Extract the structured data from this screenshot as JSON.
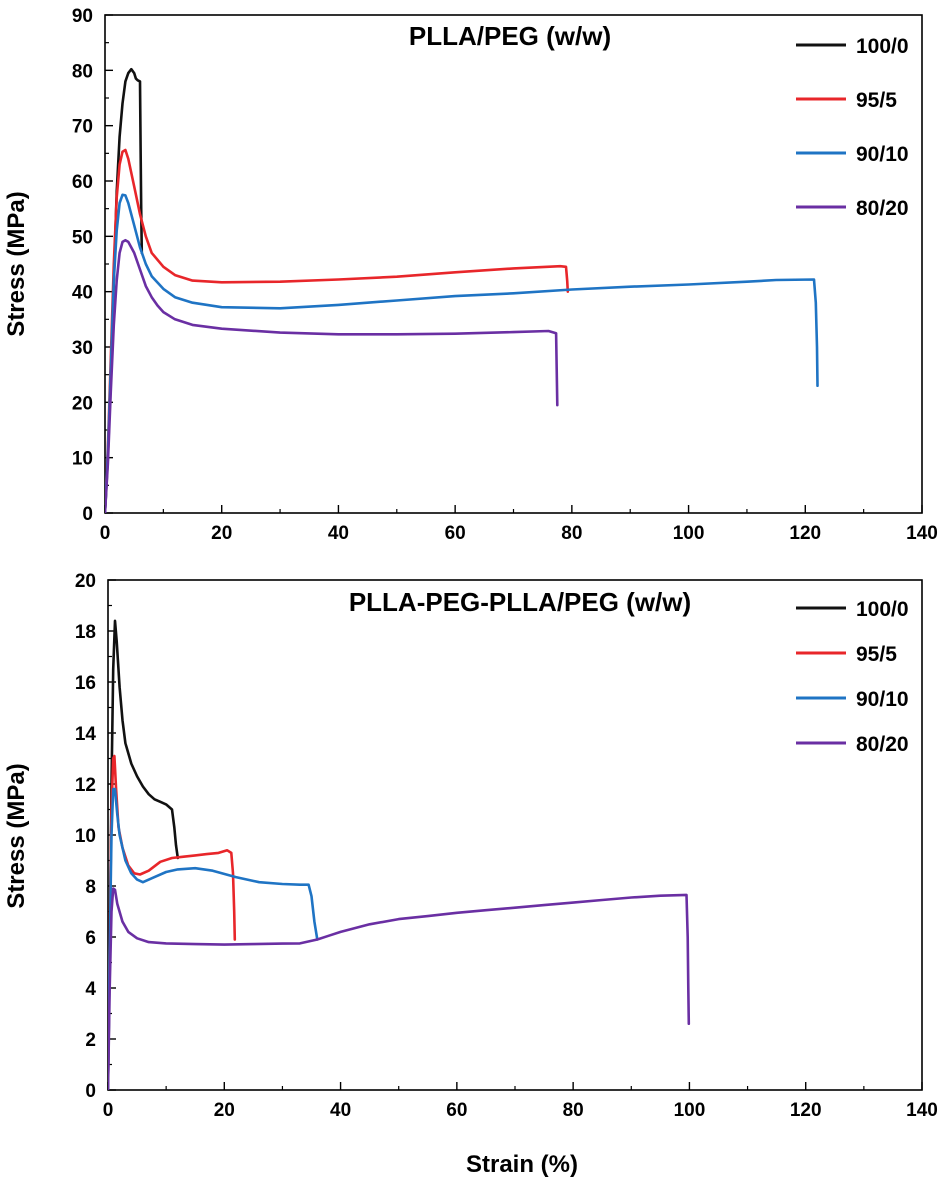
{
  "figure": {
    "xlabel": "Strain (%)"
  },
  "chart_data": [
    {
      "type": "line",
      "title": "PLLA/PEG (w/w)",
      "xlabel": "",
      "ylabel": "Stress (MPa)",
      "xlim": [
        0,
        140
      ],
      "ylim": [
        0,
        90
      ],
      "x_ticks": [
        "0",
        "20",
        "40",
        "60",
        "80",
        "100",
        "120",
        "140"
      ],
      "y_ticks": [
        "0",
        "10",
        "20",
        "30",
        "40",
        "50",
        "60",
        "70",
        "80",
        "90"
      ],
      "legend_position": "top-right",
      "series": [
        {
          "name": "100/0",
          "color": "#111111",
          "points": [
            [
              0,
              0
            ],
            [
              0.5,
              10
            ],
            [
              1,
              25
            ],
            [
              1.5,
              42
            ],
            [
              2,
              58
            ],
            [
              2.5,
              68
            ],
            [
              3,
              74
            ],
            [
              3.5,
              78
            ],
            [
              4,
              79.5
            ],
            [
              4.5,
              80.2
            ],
            [
              5,
              79.5
            ],
            [
              5.3,
              78.5
            ],
            [
              5.6,
              78.2
            ],
            [
              6,
              78
            ],
            [
              6.1,
              66
            ],
            [
              6.2,
              55
            ],
            [
              6.3,
              47
            ]
          ]
        },
        {
          "name": "95/5",
          "color": "#e8262a",
          "points": [
            [
              0,
              0
            ],
            [
              0.5,
              12
            ],
            [
              1,
              28
            ],
            [
              1.5,
              45
            ],
            [
              2,
              57
            ],
            [
              2.5,
              63
            ],
            [
              3,
              65.3
            ],
            [
              3.5,
              65.6
            ],
            [
              4,
              64
            ],
            [
              5,
              59
            ],
            [
              6,
              54
            ],
            [
              7,
              50
            ],
            [
              8,
              47
            ],
            [
              10,
              44.5
            ],
            [
              12,
              43
            ],
            [
              15,
              42
            ],
            [
              20,
              41.7
            ],
            [
              30,
              41.8
            ],
            [
              40,
              42.2
            ],
            [
              50,
              42.7
            ],
            [
              60,
              43.5
            ],
            [
              70,
              44.2
            ],
            [
              78,
              44.6
            ],
            [
              79,
              44.5
            ],
            [
              79.2,
              42
            ],
            [
              79.3,
              40
            ]
          ]
        },
        {
          "name": "90/10",
          "color": "#1f74c4",
          "points": [
            [
              0,
              0
            ],
            [
              0.5,
              11
            ],
            [
              1,
              26
            ],
            [
              1.5,
              42
            ],
            [
              2,
              51
            ],
            [
              2.5,
              56
            ],
            [
              3,
              57.5
            ],
            [
              3.5,
              57.4
            ],
            [
              4,
              56
            ],
            [
              5,
              52
            ],
            [
              6,
              48
            ],
            [
              7,
              45
            ],
            [
              8,
              42.8
            ],
            [
              10,
              40.5
            ],
            [
              12,
              39
            ],
            [
              15,
              38
            ],
            [
              20,
              37.2
            ],
            [
              30,
              37
            ],
            [
              40,
              37.6
            ],
            [
              50,
              38.4
            ],
            [
              60,
              39.2
            ],
            [
              70,
              39.7
            ],
            [
              80,
              40.4
            ],
            [
              90,
              40.9
            ],
            [
              100,
              41.3
            ],
            [
              110,
              41.8
            ],
            [
              115,
              42.1
            ],
            [
              121.5,
              42.2
            ],
            [
              121.8,
              38
            ],
            [
              122,
              30
            ],
            [
              122.1,
              23
            ]
          ]
        },
        {
          "name": "80/20",
          "color": "#6a2fa3",
          "points": [
            [
              0,
              0
            ],
            [
              0.5,
              9
            ],
            [
              1,
              22
            ],
            [
              1.5,
              34
            ],
            [
              2,
              42
            ],
            [
              2.5,
              47
            ],
            [
              3,
              49
            ],
            [
              3.5,
              49.3
            ],
            [
              4,
              49
            ],
            [
              5,
              47
            ],
            [
              6,
              44
            ],
            [
              7,
              41
            ],
            [
              8,
              39
            ],
            [
              9,
              37.5
            ],
            [
              10,
              36.3
            ],
            [
              12,
              35
            ],
            [
              15,
              34
            ],
            [
              20,
              33.3
            ],
            [
              30,
              32.6
            ],
            [
              40,
              32.3
            ],
            [
              50,
              32.3
            ],
            [
              60,
              32.4
            ],
            [
              70,
              32.7
            ],
            [
              76,
              32.9
            ],
            [
              77.3,
              32.5
            ],
            [
              77.4,
              26
            ],
            [
              77.5,
              19.5
            ]
          ]
        }
      ]
    },
    {
      "type": "line",
      "title": "PLLA-PEG-PLLA/PEG (w/w)",
      "xlabel": "Strain (%)",
      "ylabel": "Stress (MPa)",
      "xlim": [
        0,
        140
      ],
      "ylim": [
        0,
        20
      ],
      "x_ticks": [
        "0",
        "20",
        "40",
        "60",
        "80",
        "100",
        "120",
        "140"
      ],
      "y_ticks": [
        "0",
        "2",
        "4",
        "6",
        "8",
        "10",
        "12",
        "14",
        "16",
        "18",
        "20"
      ],
      "legend_position": "top-right",
      "series": [
        {
          "name": "100/0",
          "color": "#111111",
          "points": [
            [
              0,
              0
            ],
            [
              0.3,
              5
            ],
            [
              0.6,
              12
            ],
            [
              0.9,
              16.5
            ],
            [
              1.2,
              18.4
            ],
            [
              1.5,
              17.6
            ],
            [
              2,
              15.8
            ],
            [
              2.5,
              14.5
            ],
            [
              3,
              13.6
            ],
            [
              4,
              12.8
            ],
            [
              5,
              12.3
            ],
            [
              6,
              11.9
            ],
            [
              7,
              11.6
            ],
            [
              8,
              11.4
            ],
            [
              9,
              11.3
            ],
            [
              10,
              11.2
            ],
            [
              11,
              11
            ],
            [
              11.4,
              10.3
            ],
            [
              11.7,
              9.6
            ],
            [
              12,
              9.1
            ]
          ]
        },
        {
          "name": "95/5",
          "color": "#e8262a",
          "points": [
            [
              0,
              0
            ],
            [
              0.3,
              6
            ],
            [
              0.6,
              11
            ],
            [
              0.9,
              13
            ],
            [
              1.1,
              13.1
            ],
            [
              1.4,
              11.8
            ],
            [
              1.8,
              10.3
            ],
            [
              2.5,
              9.5
            ],
            [
              3.5,
              8.8
            ],
            [
              4.5,
              8.5
            ],
            [
              5.5,
              8.45
            ],
            [
              7,
              8.6
            ],
            [
              9,
              8.95
            ],
            [
              11,
              9.1
            ],
            [
              13,
              9.15
            ],
            [
              15,
              9.2
            ],
            [
              17,
              9.25
            ],
            [
              19,
              9.3
            ],
            [
              20.5,
              9.4
            ],
            [
              21.2,
              9.3
            ],
            [
              21.5,
              8.5
            ],
            [
              21.7,
              7
            ],
            [
              21.8,
              5.9
            ]
          ]
        },
        {
          "name": "90/10",
          "color": "#1f74c4",
          "points": [
            [
              0,
              0
            ],
            [
              0.3,
              5.5
            ],
            [
              0.6,
              10
            ],
            [
              0.9,
              11.8
            ],
            [
              1.2,
              11.8
            ],
            [
              1.6,
              10.8
            ],
            [
              2,
              10
            ],
            [
              3,
              9
            ],
            [
              4,
              8.5
            ],
            [
              5,
              8.25
            ],
            [
              6,
              8.15
            ],
            [
              8,
              8.35
            ],
            [
              10,
              8.55
            ],
            [
              12,
              8.65
            ],
            [
              15,
              8.7
            ],
            [
              18,
              8.6
            ],
            [
              22,
              8.35
            ],
            [
              26,
              8.15
            ],
            [
              30,
              8.08
            ],
            [
              33,
              8.05
            ],
            [
              34.5,
              8.05
            ],
            [
              35,
              7.6
            ],
            [
              35.5,
              6.6
            ],
            [
              36,
              5.9
            ]
          ]
        },
        {
          "name": "80/20",
          "color": "#6a2fa3",
          "points": [
            [
              0,
              0
            ],
            [
              0.3,
              4
            ],
            [
              0.6,
              7
            ],
            [
              0.9,
              7.9
            ],
            [
              1.2,
              7.85
            ],
            [
              1.6,
              7.3
            ],
            [
              2.5,
              6.6
            ],
            [
              3.5,
              6.2
            ],
            [
              5,
              5.95
            ],
            [
              7,
              5.8
            ],
            [
              10,
              5.75
            ],
            [
              15,
              5.72
            ],
            [
              20,
              5.7
            ],
            [
              25,
              5.72
            ],
            [
              30,
              5.74
            ],
            [
              33,
              5.75
            ],
            [
              36,
              5.9
            ],
            [
              38,
              6.05
            ],
            [
              40,
              6.2
            ],
            [
              45,
              6.5
            ],
            [
              50,
              6.7
            ],
            [
              55,
              6.82
            ],
            [
              60,
              6.95
            ],
            [
              65,
              7.05
            ],
            [
              70,
              7.15
            ],
            [
              75,
              7.25
            ],
            [
              80,
              7.35
            ],
            [
              85,
              7.45
            ],
            [
              90,
              7.55
            ],
            [
              95,
              7.62
            ],
            [
              99.5,
              7.65
            ],
            [
              99.7,
              6
            ],
            [
              99.8,
              4
            ],
            [
              99.9,
              2.6
            ]
          ]
        }
      ]
    }
  ]
}
